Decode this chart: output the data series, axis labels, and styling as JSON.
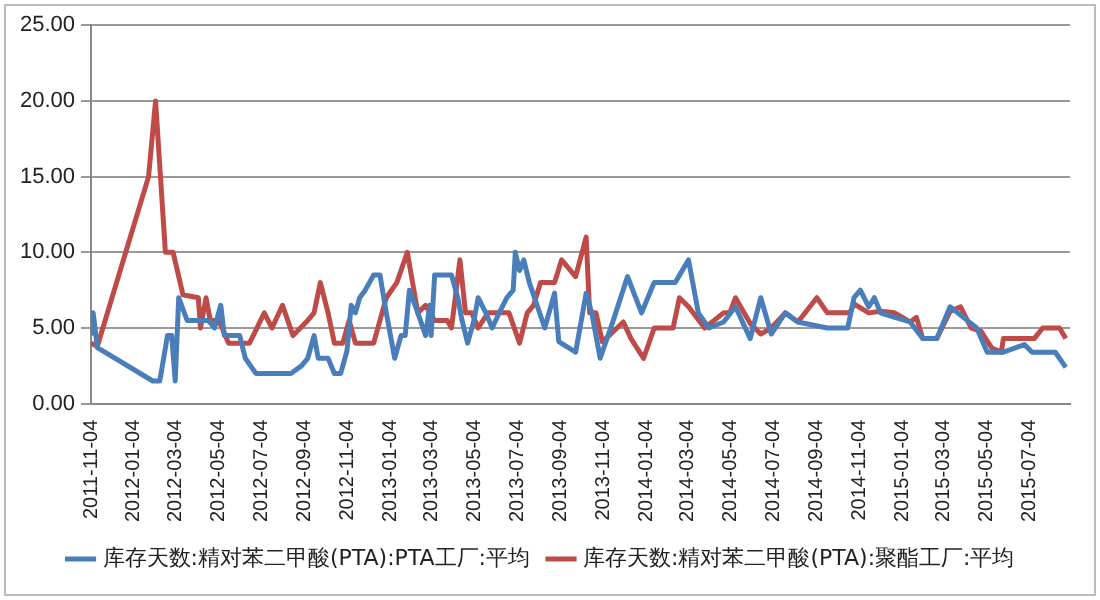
{
  "chart_data": {
    "type": "line",
    "series": [
      {
        "name": "库存天数:精对苯二甲酸(PTA):PTA工厂:平均",
        "color": "#4a7ebb",
        "x": [
          "2011-11-04",
          "2011-11-07",
          "2011-11-13",
          "2012-01-31",
          "2012-02-10",
          "2012-02-21",
          "2012-02-27",
          "2012-03-03",
          "2012-03-08",
          "2012-03-20",
          "2012-04-08",
          "2012-04-19",
          "2012-04-28",
          "2012-05-07",
          "2012-05-12",
          "2012-06-03",
          "2012-06-11",
          "2012-06-26",
          "2012-08-15",
          "2012-08-30",
          "2012-09-08",
          "2012-09-17",
          "2012-09-23",
          "2012-10-07",
          "2012-10-16",
          "2012-10-25",
          "2012-11-03",
          "2012-11-09",
          "2012-11-15",
          "2012-11-21",
          "2012-11-29",
          "2012-12-11",
          "2012-12-20",
          "2012-12-29",
          "2013-01-10",
          "2013-01-19",
          "2013-01-25",
          "2013-01-31",
          "2013-02-12",
          "2013-02-23",
          "2013-03-01",
          "2013-03-03",
          "2013-03-08",
          "2013-04-01",
          "2013-04-10",
          "2013-04-16",
          "2013-04-24",
          "2013-05-03",
          "2013-05-09",
          "2013-05-20",
          "2013-05-29",
          "2013-06-08",
          "2013-06-19",
          "2013-06-28",
          "2013-07-01",
          "2013-07-07",
          "2013-07-13",
          "2013-07-21",
          "2013-08-12",
          "2013-08-26",
          "2013-09-01",
          "2013-09-25",
          "2013-10-10",
          "2013-10-18",
          "2013-10-30",
          "2013-11-17",
          "2013-12-08",
          "2013-12-28",
          "2014-01-15",
          "2014-02-14",
          "2014-03-05",
          "2014-03-19",
          "2014-04-03",
          "2014-04-24",
          "2014-05-11",
          "2014-06-01",
          "2014-06-16",
          "2014-07-01",
          "2014-07-21",
          "2014-08-08",
          "2014-09-19",
          "2014-10-18",
          "2014-10-27",
          "2014-11-05",
          "2014-11-17",
          "2014-11-25",
          "2014-12-04",
          "2014-12-24",
          "2015-01-15",
          "2015-02-02",
          "2015-02-22",
          "2015-03-13",
          "2015-04-01",
          "2015-04-20",
          "2015-05-05",
          "2015-05-28",
          "2015-06-27",
          "2015-07-08",
          "2015-08-10",
          "2015-08-25"
        ],
        "values": [
          4.5,
          6,
          3.7,
          1.5,
          1.5,
          4.5,
          4.5,
          1.5,
          7,
          5.5,
          5.5,
          5.5,
          5,
          6.5,
          4.5,
          4.5,
          3,
          2,
          2,
          2.5,
          3,
          4.5,
          3,
          3,
          2,
          2,
          3.5,
          6.5,
          6,
          7,
          7.5,
          8.5,
          8.5,
          6,
          3,
          4.5,
          4.5,
          7.5,
          6,
          4.5,
          6.5,
          4.5,
          8.5,
          8.5,
          7,
          5.5,
          4,
          5.5,
          7,
          6,
          5,
          6,
          7,
          7.5,
          10,
          8.8,
          9.5,
          8,
          5,
          7.3,
          4.1,
          3.4,
          7.3,
          6,
          3,
          5.4,
          8.4,
          6,
          8,
          8,
          9.5,
          6,
          5,
          5.4,
          6.4,
          4.3,
          7,
          4.6,
          6,
          5.4,
          5,
          5,
          7,
          7.5,
          6.4,
          7,
          6,
          5.7,
          5.4,
          4.3,
          4.3,
          6.4,
          5.7,
          5,
          3.4,
          3.4,
          3.9,
          3.4,
          3.4,
          2.4
        ]
      },
      {
        "name": "库存天数:精对苯二甲酸(PTA):聚酯工厂:平均",
        "color": "#be4b48",
        "x": [
          "2011-11-04",
          "2011-11-13",
          "2012-01-25",
          "2012-02-04",
          "2012-02-18",
          "2012-02-29",
          "2012-03-14",
          "2012-04-05",
          "2012-04-08",
          "2012-04-16",
          "2012-04-22",
          "2012-05-04",
          "2012-05-09",
          "2012-05-18",
          "2012-06-17",
          "2012-07-08",
          "2012-07-19",
          "2012-08-03",
          "2012-08-18",
          "2012-09-08",
          "2012-09-17",
          "2012-09-26",
          "2012-10-07",
          "2012-10-16",
          "2012-10-28",
          "2012-11-06",
          "2012-11-15",
          "2012-12-11",
          "2012-12-20",
          "2012-12-29",
          "2013-01-13",
          "2013-01-28",
          "2013-02-12",
          "2013-02-23",
          "2013-03-08",
          "2013-03-26",
          "2013-04-01",
          "2013-04-13",
          "2013-04-21",
          "2013-04-30",
          "2013-05-09",
          "2013-05-23",
          "2013-06-22",
          "2013-07-07",
          "2013-07-18",
          "2013-07-27",
          "2013-08-06",
          "2013-08-26",
          "2013-09-05",
          "2013-09-25",
          "2013-10-10",
          "2013-10-15",
          "2013-10-24",
          "2013-11-02",
          "2013-11-14",
          "2013-12-02",
          "2013-12-13",
          "2013-12-31",
          "2014-01-15",
          "2014-02-11",
          "2014-02-20",
          "2014-03-05",
          "2014-03-28",
          "2014-04-24",
          "2014-05-03",
          "2014-05-11",
          "2014-06-01",
          "2014-06-16",
          "2014-07-01",
          "2014-07-21",
          "2014-08-08",
          "2014-09-04",
          "2014-09-19",
          "2014-10-21",
          "2014-10-27",
          "2014-11-17",
          "2014-12-04",
          "2014-12-24",
          "2015-01-15",
          "2015-01-24",
          "2015-02-02",
          "2015-02-22",
          "2015-03-13",
          "2015-03-28",
          "2015-04-12",
          "2015-04-26",
          "2015-05-11",
          "2015-05-25",
          "2015-05-28",
          "2015-07-11",
          "2015-07-23",
          "2015-08-16",
          "2015-08-25"
        ],
        "values": [
          4,
          3.8,
          15,
          20,
          10,
          10,
          7.2,
          7,
          5,
          7,
          5.5,
          5.5,
          5,
          4,
          4,
          6,
          5,
          6.5,
          4.5,
          5.5,
          6,
          8,
          6,
          4,
          4,
          5.5,
          4,
          4,
          5.5,
          7,
          8,
          10,
          6,
          6.5,
          5.5,
          5.5,
          5,
          9.5,
          6,
          6,
          5,
          6,
          6,
          4,
          6,
          6.5,
          8,
          8,
          9.5,
          8.4,
          11,
          6,
          6,
          4.1,
          4.6,
          5.4,
          4.3,
          3,
          5,
          5,
          7,
          6.4,
          5,
          6,
          6,
          7,
          5.3,
          4.6,
          5,
          6,
          5.4,
          7,
          6,
          6,
          6.6,
          6,
          6.1,
          6,
          5.4,
          5.7,
          4.3,
          4.3,
          6.1,
          6.4,
          5,
          4.8,
          3.7,
          3.4,
          4.3,
          4.3,
          5,
          5,
          4.3
        ]
      }
    ],
    "xlim": [
      "2011-11-04",
      "2015-08-31"
    ],
    "xticks": [
      "2011-11-04",
      "2012-01-04",
      "2012-03-04",
      "2012-05-04",
      "2012-07-04",
      "2012-09-04",
      "2012-11-04",
      "2013-01-04",
      "2013-03-04",
      "2013-05-04",
      "2013-07-04",
      "2013-09-04",
      "2013-11-04",
      "2014-01-04",
      "2014-03-04",
      "2014-05-04",
      "2014-07-04",
      "2014-09-04",
      "2014-11-04",
      "2015-01-04",
      "2015-03-04",
      "2015-05-04",
      "2015-07-04"
    ],
    "ylim": [
      0,
      25
    ],
    "yticks": [
      {
        "value": 0,
        "label": "0.00"
      },
      {
        "value": 5,
        "label": "5.00"
      },
      {
        "value": 10,
        "label": "10.00"
      },
      {
        "value": 15,
        "label": "15.00"
      },
      {
        "value": 20,
        "label": "20.00"
      },
      {
        "value": 25,
        "label": "25.00"
      }
    ],
    "grid": "y",
    "legend": "bottom",
    "marker": "none",
    "line_style": "solid"
  }
}
